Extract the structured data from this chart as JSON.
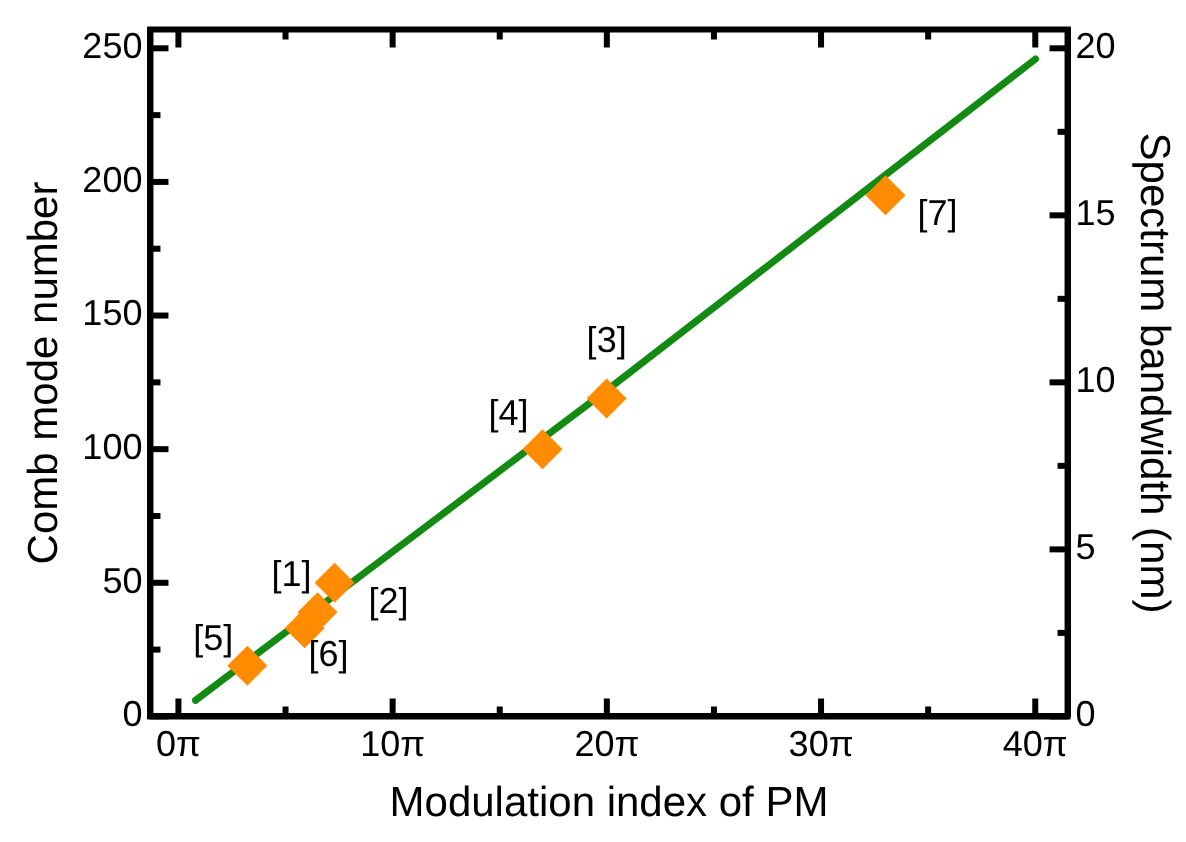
{
  "chart_data": {
    "type": "scatter",
    "xlabel": "Modulation index of PM",
    "ylabel": "Comb mode number",
    "y2label": "Spectrum bandwidth (nm)",
    "xlim": [
      -4.1,
      130.4
    ],
    "ylim": [
      0,
      257
    ],
    "y2lim": [
      0,
      20.56
    ],
    "xticks": [
      {
        "value": 0,
        "label": "0π"
      },
      {
        "value": 15.708,
        "label": null
      },
      {
        "value": 31.416,
        "label": "10π"
      },
      {
        "value": 47.124,
        "label": null
      },
      {
        "value": 62.832,
        "label": "20π"
      },
      {
        "value": 78.54,
        "label": null
      },
      {
        "value": 94.248,
        "label": "30π"
      },
      {
        "value": 109.956,
        "label": null
      },
      {
        "value": 125.664,
        "label": "40π"
      }
    ],
    "yticks": [
      0,
      {
        "value": 25,
        "label": null
      },
      50,
      {
        "value": 75,
        "label": null
      },
      100,
      {
        "value": 125,
        "label": null
      },
      150,
      {
        "value": 175,
        "label": null
      },
      200,
      {
        "value": 225,
        "label": null
      },
      250
    ],
    "y2ticks": [
      0,
      {
        "value": 2.5,
        "label": null
      },
      5,
      {
        "value": 7.5,
        "label": null
      },
      10,
      {
        "value": 12.5,
        "label": null
      },
      15,
      {
        "value": 17.5,
        "label": null
      },
      20
    ],
    "grid": false,
    "legend": false,
    "series": [
      {
        "type": "line",
        "color": "#138a13",
        "x": [
          2.5,
          62.8,
          125.7
        ],
        "values": [
          6,
          122,
          246
        ],
        "marker": "none",
        "line_style": "solid"
      },
      {
        "type": "scatter",
        "color": "#ff8c00",
        "x": [
          20.4,
          22.9,
          62.8,
          53.4,
          10.1,
          18.5,
          103.7
        ],
        "values": [
          39,
          50,
          119,
          100,
          19,
          33,
          195
        ],
        "marker": "diamond"
      }
    ],
    "annotations": [
      {
        "text": "[1]",
        "x": 20.4,
        "y": 39
      },
      {
        "text": "[2]",
        "x": 22.9,
        "y": 50
      },
      {
        "text": "[3]",
        "x": 62.8,
        "y": 119
      },
      {
        "text": "[4]",
        "x": 53.4,
        "y": 100
      },
      {
        "text": "[5]",
        "x": 10.1,
        "y": 19
      },
      {
        "text": "[6]",
        "x": 18.5,
        "y": 33
      },
      {
        "text": "[7]",
        "x": 103.7,
        "y": 195
      }
    ]
  }
}
